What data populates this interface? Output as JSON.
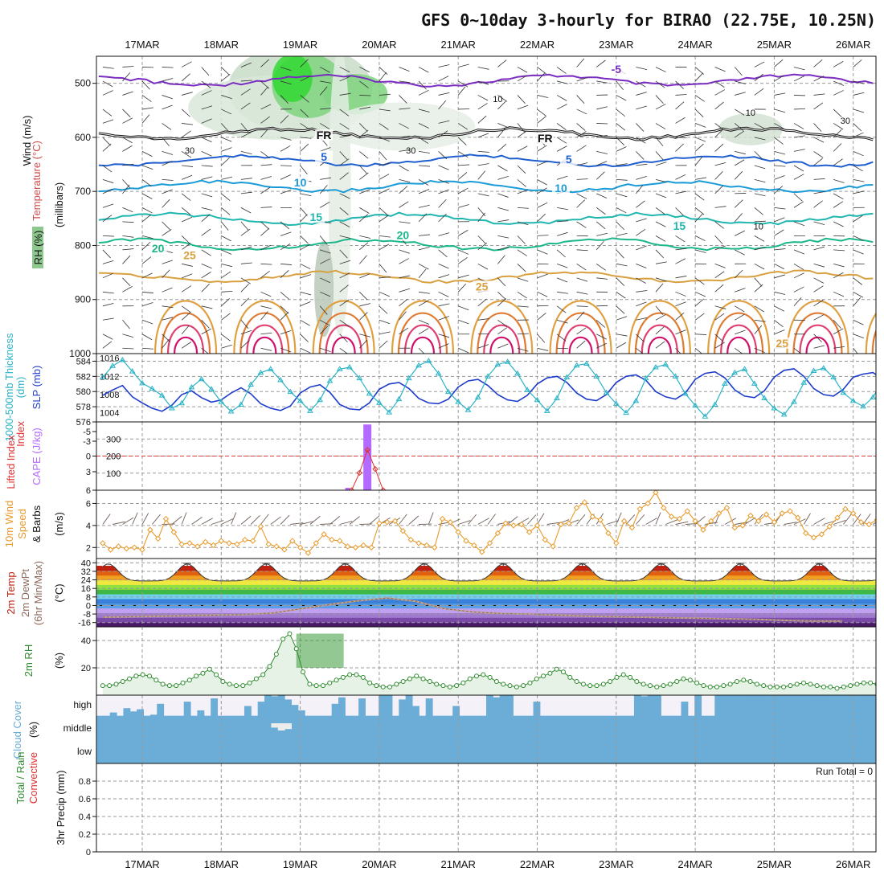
{
  "title": "GFS 0~10day 3-hourly for BIRAO (22.75E, 10.25N)",
  "colors": {
    "temp_line": "#1f5fd0",
    "freezing": "#111111",
    "wind_barb": "#333333",
    "thickness": "#1e3ccc",
    "slp": "#2ab3c6",
    "cape_bar": "#b36bff",
    "li_line": "#e03030",
    "wind_speed": "#e89a2a",
    "dewpt": "#8a6a5a",
    "rh_line": "#2f8a2f",
    "cloud": "#6badd6"
  },
  "chart_data": [
    {
      "panel": "upper-air",
      "type": "line",
      "dates": [
        "17MAR",
        "18MAR",
        "19MAR",
        "20MAR",
        "21MAR",
        "22MAR",
        "23MAR",
        "24MAR",
        "25MAR",
        "26MAR"
      ],
      "y_ticks": [
        500,
        600,
        700,
        800,
        900,
        1000
      ],
      "ylabel_parts": [
        "Wind (m/s)",
        "Temperature (°C)",
        "RH (%)",
        "(millibars)"
      ],
      "ylim": [
        1000,
        450
      ],
      "temp_contour_labels": [
        "-5",
        "5",
        "10",
        "15",
        "20",
        "25",
        "FR",
        "FR"
      ],
      "rh_contour_labels": [
        "10",
        "30",
        "30",
        "10",
        "30",
        "10"
      ],
      "isotherms": [
        {
          "name": "-5",
          "color": "#7a2bc2",
          "pressure": 492
        },
        {
          "name": "FR",
          "color": "#111111",
          "pressure": 590
        },
        {
          "name": "5",
          "color": "#1f5fd0",
          "pressure": 640
        },
        {
          "name": "10",
          "color": "#1a9bd8",
          "pressure": 688
        },
        {
          "name": "15",
          "color": "#20b6b0",
          "pressure": 748
        },
        {
          "name": "20",
          "color": "#1bb68a",
          "pressure": 795
        },
        {
          "name": "25",
          "color": "#d9a040",
          "pressure": 855
        }
      ]
    },
    {
      "panel": "thickness-slp",
      "type": "line",
      "ylabel_left": "1000-500mb Thickness (dm)",
      "ylabel_right": "SLP (mb)",
      "left_ticks": [
        "584",
        "582",
        "580",
        "578",
        "576"
      ],
      "right_ticks": [
        "1016",
        "1012",
        "1008",
        "1004"
      ],
      "thickness_ylim": [
        576,
        585
      ],
      "slp_ylim": [
        1002,
        1017
      ],
      "series": [
        {
          "name": "1000-500mb Thickness",
          "values": [
            579.5,
            580.2,
            580.8,
            579.3,
            578.5,
            577.8,
            577.4,
            578.2,
            579.6,
            580.1,
            579.2,
            578.6,
            578.9,
            579.8,
            580.5,
            579.7,
            578.4,
            577.8,
            577.5,
            578.1,
            579.8,
            580.6,
            580.9,
            579.9,
            578.3,
            577.7,
            577.6,
            578.5,
            580.3,
            581.0,
            581.2,
            580.4,
            579.1,
            578.5,
            578.4,
            579.0,
            580.6,
            581.4,
            581.6,
            580.8,
            579.6,
            578.9,
            578.7,
            579.5,
            581.0,
            581.8,
            582.0,
            581.2,
            579.8,
            579.0,
            578.8,
            579.6,
            581.2,
            582.0,
            582.2,
            581.5,
            580.0,
            579.3,
            579.0,
            579.8,
            581.6,
            582.4,
            582.6,
            581.8,
            580.2,
            579.4,
            579.2,
            580.1,
            581.9,
            582.8,
            583.0,
            582.0,
            580.4,
            579.6,
            579.4,
            580.3,
            581.9,
            582.3,
            582.5,
            581.6,
            580.1,
            579.4,
            579.3
          ]
        },
        {
          "name": "SLP",
          "values": [
            1011.8,
            1014.3,
            1015.6,
            1013.1,
            1010.5,
            1009.3,
            1007.8,
            1005.0,
            1006.1,
            1009.6,
            1011.4,
            1009.2,
            1006.4,
            1004.3,
            1005.8,
            1010.2,
            1012.8,
            1013.6,
            1011.2,
            1008.6,
            1006.6,
            1004.4,
            1006.8,
            1011.0,
            1013.6,
            1014.0,
            1011.6,
            1008.2,
            1006.2,
            1004.1,
            1007.0,
            1011.6,
            1014.4,
            1015.4,
            1012.6,
            1008.6,
            1006.4,
            1004.6,
            1007.4,
            1012.0,
            1014.6,
            1015.2,
            1012.6,
            1009.0,
            1006.8,
            1004.4,
            1007.2,
            1011.8,
            1014.4,
            1014.8,
            1012.0,
            1008.4,
            1006.0,
            1004.0,
            1006.6,
            1011.6,
            1014.0,
            1014.6,
            1012.0,
            1008.2,
            1005.6,
            1003.2,
            1005.8,
            1010.4,
            1012.8,
            1013.6,
            1010.4,
            1007.2,
            1005.0,
            1003.6,
            1006.4,
            1010.6,
            1013.2,
            1013.8,
            1011.8,
            1008.4,
            1006.6,
            1005.4,
            1007.4,
            1011.2,
            1012.6,
            1010.0,
            1007.4
          ]
        }
      ]
    },
    {
      "panel": "instability",
      "type": "bar",
      "ylabel_left": "Lifted Index",
      "ylabel_right": "CAPE (J/kg)",
      "left_ticks": [
        "-5",
        "-3",
        "0",
        "3",
        "6"
      ],
      "right_ticks": [
        "300",
        "200",
        "100"
      ],
      "cape_ylim": [
        0,
        400
      ],
      "cape_spike_day": 2.85,
      "cape_spike_value": 385,
      "li_zero_line": "0",
      "series": [
        {
          "name": "CAPE",
          "points": [
            [
              2.85,
              385
            ],
            [
              2.6,
              5
            ]
          ]
        },
        {
          "name": "Lifted Index",
          "points": [
            [
              2.65,
              6
            ],
            [
              2.75,
              3.2
            ],
            [
              2.85,
              -0.5
            ],
            [
              2.95,
              2.6
            ],
            [
              3.05,
              6
            ]
          ]
        }
      ]
    },
    {
      "panel": "10m-wind",
      "type": "line",
      "ylabel": "10m Wind Speed (m/s) & Barbs",
      "ylabel_parts": [
        "10m Wind",
        "Speed",
        "& Barbs",
        "(m/s)"
      ],
      "y_ticks": [
        "6",
        "4",
        "2"
      ],
      "ylim": [
        1,
        7.2
      ],
      "series": [
        {
          "name": "Wind Speed",
          "values": [
            2.4,
            1.8,
            2.1,
            1.9,
            2.0,
            1.8,
            3.6,
            2.8,
            4.6,
            3.4,
            2.3,
            2.4,
            2.1,
            2.5,
            2.2,
            2.6,
            2.4,
            2.3,
            2.7,
            2.6,
            3.9,
            2.3,
            2.1,
            1.8,
            2.6,
            2.0,
            1.5,
            2.4,
            3.2,
            2.7,
            2.6,
            2.1,
            2.0,
            2.2,
            2.0,
            4.2,
            4.3,
            4.4,
            3.5,
            2.7,
            2.4,
            2.2,
            2.0,
            4.6,
            4.3,
            3.4,
            2.6,
            2.2,
            1.6,
            2.4,
            3.3,
            4.2,
            4.0,
            4.1,
            3.4,
            4.0,
            2.7,
            2.1,
            4.1,
            4.2,
            5.6,
            6.1,
            4.8,
            4.5,
            3.3,
            2.4,
            4.4,
            3.8,
            5.5,
            6.0,
            7.0,
            5.6,
            4.8,
            4.6,
            5.3,
            4.4,
            3.6,
            4.4,
            5.1,
            5.6,
            3.8,
            4.0,
            4.9,
            4.4,
            5.0,
            4.3,
            5.1,
            5.3,
            4.7,
            3.3,
            2.9,
            3.2,
            3.9,
            4.7,
            5.5,
            5.1,
            4.3,
            4.1,
            4.5,
            5.0
          ]
        }
      ]
    },
    {
      "panel": "2m-temp",
      "type": "area",
      "ylabel_parts": [
        "2m Temp",
        "2m DewPt",
        "(6hr Min/Max)",
        "(°C)"
      ],
      "y_ticks": [
        "40",
        "32",
        "24",
        "16",
        "8",
        "0",
        "-8",
        "-16"
      ],
      "ylim": [
        -20,
        44
      ],
      "series": [
        {
          "name": "2m Temp",
          "values": [
            37.5,
            38.5,
            39.3,
            38.0,
            33.5,
            29.0,
            25.8,
            24.6,
            23.8,
            23.0,
            23.6,
            27.0
          ]
        },
        {
          "name": "2m DewPt",
          "values": [
            -11,
            -10.5,
            -10,
            -9.5,
            -9,
            -8.5,
            -7,
            -3,
            1,
            4.5,
            7,
            4,
            -3,
            -6,
            -7.5,
            -8,
            -9,
            -10,
            -10.5,
            -11,
            -11.5,
            -12,
            -12.5,
            -13,
            -14,
            -14.5,
            -14.5
          ]
        }
      ]
    },
    {
      "panel": "2m-rh",
      "type": "area",
      "ylabel": "2m RH (%)",
      "y_ticks": [
        "40",
        "20"
      ],
      "ylim": [
        0,
        50
      ],
      "series": [
        {
          "name": "2m RH",
          "values": [
            7,
            7,
            8,
            10,
            12,
            14,
            15,
            14,
            11,
            8,
            7,
            7,
            9,
            11,
            14,
            16,
            19,
            15,
            10,
            8,
            7,
            7,
            9,
            12,
            15,
            21,
            30,
            41,
            45,
            34,
            17,
            8,
            7,
            7,
            9,
            11,
            13,
            15,
            15,
            13,
            9,
            7,
            6,
            6,
            8,
            10,
            12,
            14,
            12,
            10,
            8,
            7,
            6,
            7,
            9,
            12,
            14,
            15,
            13,
            10,
            8,
            7,
            6,
            7,
            9,
            12,
            14,
            16,
            19,
            17,
            13,
            10,
            8,
            7,
            7,
            8,
            10,
            13,
            15,
            13,
            10,
            8,
            7,
            6,
            7,
            8,
            10,
            12,
            11,
            9,
            7,
            6,
            6,
            7,
            8,
            10,
            11,
            10,
            8,
            7,
            6,
            6,
            6,
            7,
            8,
            9,
            8,
            7,
            6,
            6,
            5,
            6,
            7,
            8,
            9,
            9,
            8
          ]
        }
      ]
    },
    {
      "panel": "cloud-cover",
      "type": "area",
      "ylabel": "Cloud Cover (%)",
      "levels": [
        "high",
        "middle",
        "low"
      ],
      "series": [
        {
          "name": "high",
          "values": [
            5,
            5,
            20,
            5,
            40,
            25,
            35,
            5,
            10,
            60,
            5,
            5,
            5,
            70,
            5,
            30,
            5,
            85,
            5,
            5,
            5,
            5,
            50,
            5,
            70,
            100,
            95,
            100,
            80,
            55,
            30,
            5,
            5,
            5,
            5,
            60,
            90,
            5,
            5,
            85,
            5,
            5,
            100,
            100,
            5,
            80,
            100,
            50,
            5,
            85,
            5,
            5,
            5,
            50,
            5,
            5,
            5,
            5,
            100,
            90,
            100,
            100,
            5,
            5,
            5,
            70,
            5,
            5,
            5,
            5,
            5,
            5,
            5,
            5,
            5,
            5,
            5,
            5,
            5,
            5,
            100,
            95,
            100,
            100,
            5,
            5,
            5,
            70,
            5,
            100,
            5,
            5,
            100,
            100,
            100,
            100,
            100,
            100,
            100,
            100,
            100,
            100,
            100,
            100,
            100,
            100,
            100,
            100,
            100,
            100,
            100,
            100,
            100,
            100,
            100,
            100
          ]
        },
        {
          "name": "middle",
          "values": [
            0,
            0,
            0,
            0,
            0,
            0,
            0,
            0,
            0,
            0,
            0,
            0,
            0,
            0,
            0,
            0,
            0,
            0,
            0,
            0,
            0,
            0,
            0,
            0,
            0,
            0,
            30,
            50,
            40,
            0,
            0,
            0,
            0,
            0,
            0,
            0,
            0,
            0,
            0,
            0,
            0,
            0,
            0,
            0,
            0,
            0,
            0,
            0,
            0,
            0,
            0,
            0,
            0,
            0,
            0,
            0,
            0,
            0,
            0,
            0,
            0,
            0,
            0,
            0,
            0,
            0,
            0,
            0,
            0,
            0,
            0,
            0,
            0,
            0,
            0,
            0,
            0,
            0,
            0,
            0,
            0,
            0,
            0,
            0,
            0,
            0,
            0,
            0,
            0,
            0,
            0,
            0,
            0,
            0,
            0,
            0,
            0,
            0,
            0,
            0,
            0,
            0,
            0,
            0,
            0,
            0,
            0,
            0,
            0,
            0,
            0,
            0,
            0,
            0,
            0,
            0
          ]
        },
        {
          "name": "low",
          "values": [
            0,
            0,
            0,
            0,
            0,
            0,
            0,
            0,
            0,
            0,
            0,
            0,
            0,
            0,
            0,
            0,
            0,
            0,
            0,
            0,
            0,
            0,
            0,
            0,
            0,
            0,
            0,
            0,
            0,
            0,
            0,
            0,
            0,
            0,
            0,
            0,
            0,
            0,
            0,
            0,
            0,
            0,
            0,
            0,
            0,
            0,
            0,
            0,
            0,
            0,
            0,
            0,
            0,
            0,
            0,
            0,
            0,
            0,
            0,
            0,
            0,
            0,
            0,
            0,
            0,
            0,
            0,
            0,
            0,
            0,
            0,
            0,
            0,
            0,
            0,
            0,
            0,
            0,
            0,
            0,
            0,
            0,
            0,
            0,
            0,
            0,
            0,
            0,
            0,
            0,
            0,
            0,
            0,
            0,
            0,
            0,
            0,
            0,
            0,
            0,
            0,
            0,
            0,
            0,
            0,
            0,
            0,
            0,
            0,
            0,
            0,
            0,
            0,
            0,
            0,
            0
          ]
        }
      ]
    },
    {
      "panel": "precip",
      "type": "bar",
      "ylabel_parts": [
        "3hr Precip (mm)",
        "Total / Rain",
        "Convective"
      ],
      "y_ticks": [
        "0.8",
        "0.6",
        "0.4",
        "0.2",
        "0"
      ],
      "ylim": [
        0,
        1
      ],
      "run_total": "Run Total = 0",
      "series": [
        {
          "name": "3hr Precip",
          "values": [
            0
          ]
        }
      ]
    }
  ]
}
